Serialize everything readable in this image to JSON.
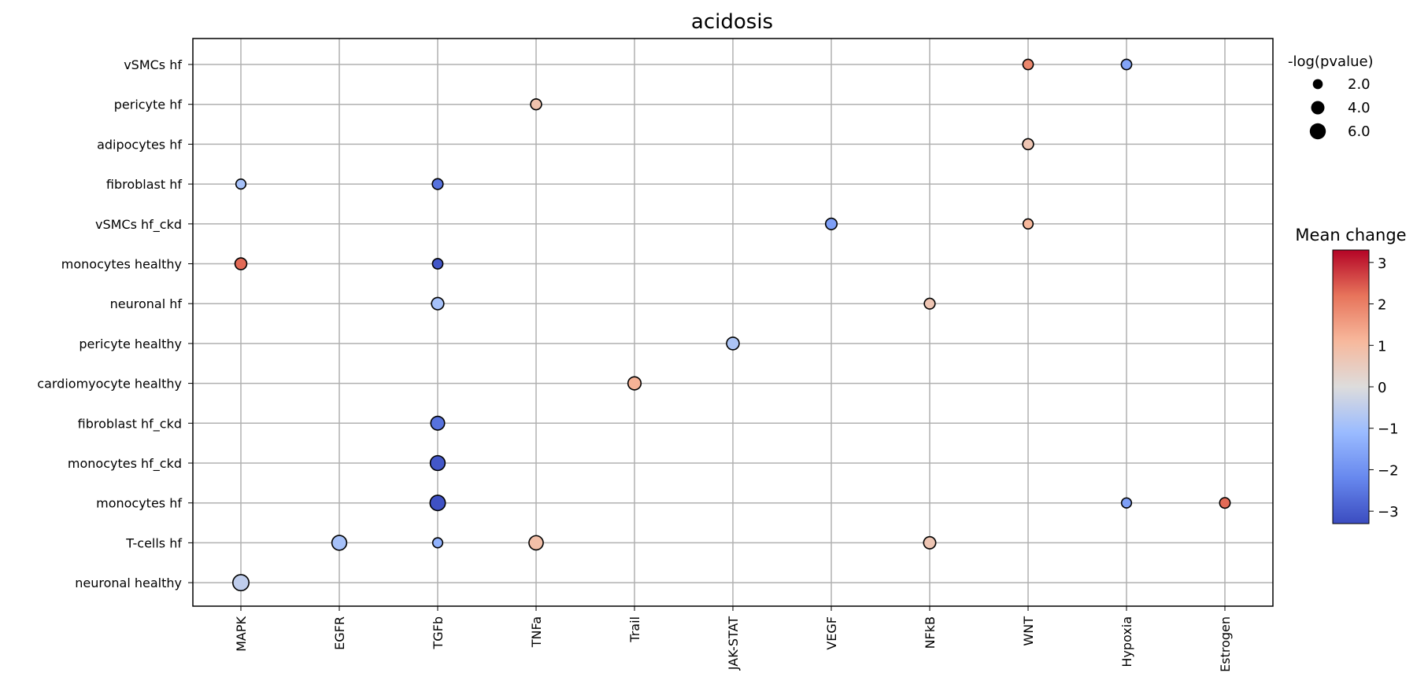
{
  "chart_data": {
    "type": "scatter",
    "title": "acidosis",
    "xlabel": "",
    "ylabel": "",
    "categories_x": [
      "MAPK",
      "EGFR",
      "TGFb",
      "TNFa",
      "Trail",
      "JAK-STAT",
      "VEGF",
      "NFkB",
      "WNT",
      "Hypoxia",
      "Estrogen"
    ],
    "categories_y": [
      "vSMCs hf",
      "pericyte hf",
      "adipocytes hf",
      "fibroblast hf",
      "vSMCs hf_ckd",
      "monocytes healthy",
      "neuronal hf",
      "pericyte healthy",
      "cardiomyocyte healthy",
      "fibroblast hf_ckd",
      "monocytes hf_ckd",
      "monocytes hf",
      "T-cells hf",
      "neuronal healthy"
    ],
    "grid": true,
    "colormap": "coolwarm",
    "size_legend": {
      "title": "-log(pvalue)",
      "placement": "top-right",
      "entries": [
        {
          "label": "2.0",
          "value": 2.0
        },
        {
          "label": "4.0",
          "value": 4.0
        },
        {
          "label": "6.0",
          "value": 6.0
        }
      ]
    },
    "colorbar": {
      "title": "Mean change",
      "range": [
        -3.3,
        3.3
      ],
      "ticks": [
        "3",
        "2",
        "1",
        "0",
        "−1",
        "−2",
        "−3"
      ],
      "tick_values": [
        3,
        2,
        1,
        0,
        -1,
        -2,
        -3
      ]
    },
    "points": [
      {
        "x": "WNT",
        "y": "vSMCs hf",
        "mean_change": 1.9,
        "neglog_p": 2.2
      },
      {
        "x": "Hypoxia",
        "y": "vSMCs hf",
        "mean_change": -1.6,
        "neglog_p": 2.2
      },
      {
        "x": "TNFa",
        "y": "pericyte hf",
        "mean_change": 0.8,
        "neglog_p": 2.5
      },
      {
        "x": "WNT",
        "y": "adipocytes hf",
        "mean_change": 0.7,
        "neglog_p": 2.5
      },
      {
        "x": "MAPK",
        "y": "fibroblast hf",
        "mean_change": -0.9,
        "neglog_p": 2.0
      },
      {
        "x": "TGFb",
        "y": "fibroblast hf",
        "mean_change": -2.6,
        "neglog_p": 2.4
      },
      {
        "x": "VEGF",
        "y": "vSMCs hf_ckd",
        "mean_change": -1.7,
        "neglog_p": 2.8
      },
      {
        "x": "WNT",
        "y": "vSMCs hf_ckd",
        "mean_change": 1.1,
        "neglog_p": 2.0
      },
      {
        "x": "MAPK",
        "y": "monocytes healthy",
        "mean_change": 2.3,
        "neglog_p": 3.0
      },
      {
        "x": "TGFb",
        "y": "monocytes healthy",
        "mean_change": -3.1,
        "neglog_p": 2.2
      },
      {
        "x": "TGFb",
        "y": "neuronal hf",
        "mean_change": -0.9,
        "neglog_p": 3.3
      },
      {
        "x": "NFkB",
        "y": "neuronal hf",
        "mean_change": 0.7,
        "neglog_p": 2.4
      },
      {
        "x": "JAK-STAT",
        "y": "pericyte healthy",
        "mean_change": -0.8,
        "neglog_p": 3.5
      },
      {
        "x": "Trail",
        "y": "cardiomyocyte healthy",
        "mean_change": 1.2,
        "neglog_p": 3.8
      },
      {
        "x": "TGFb",
        "y": "fibroblast hf_ckd",
        "mean_change": -2.6,
        "neglog_p": 4.3
      },
      {
        "x": "TGFb",
        "y": "monocytes hf_ckd",
        "mean_change": -3.1,
        "neglog_p": 5.0
      },
      {
        "x": "TGFb",
        "y": "monocytes hf",
        "mean_change": -3.2,
        "neglog_p": 5.4
      },
      {
        "x": "Hypoxia",
        "y": "monocytes hf",
        "mean_change": -1.7,
        "neglog_p": 2.0
      },
      {
        "x": "Estrogen",
        "y": "monocytes hf",
        "mean_change": 2.3,
        "neglog_p": 2.3
      },
      {
        "x": "EGFR",
        "y": "T-cells hf",
        "mean_change": -0.9,
        "neglog_p": 5.0
      },
      {
        "x": "TGFb",
        "y": "T-cells hf",
        "mean_change": -1.3,
        "neglog_p": 2.0
      },
      {
        "x": "TNFa",
        "y": "T-cells hf",
        "mean_change": 0.9,
        "neglog_p": 4.6
      },
      {
        "x": "NFkB",
        "y": "T-cells hf",
        "mean_change": 0.7,
        "neglog_p": 3.2
      },
      {
        "x": "MAPK",
        "y": "neuronal healthy",
        "mean_change": -0.5,
        "neglog_p": 6.0
      }
    ]
  }
}
